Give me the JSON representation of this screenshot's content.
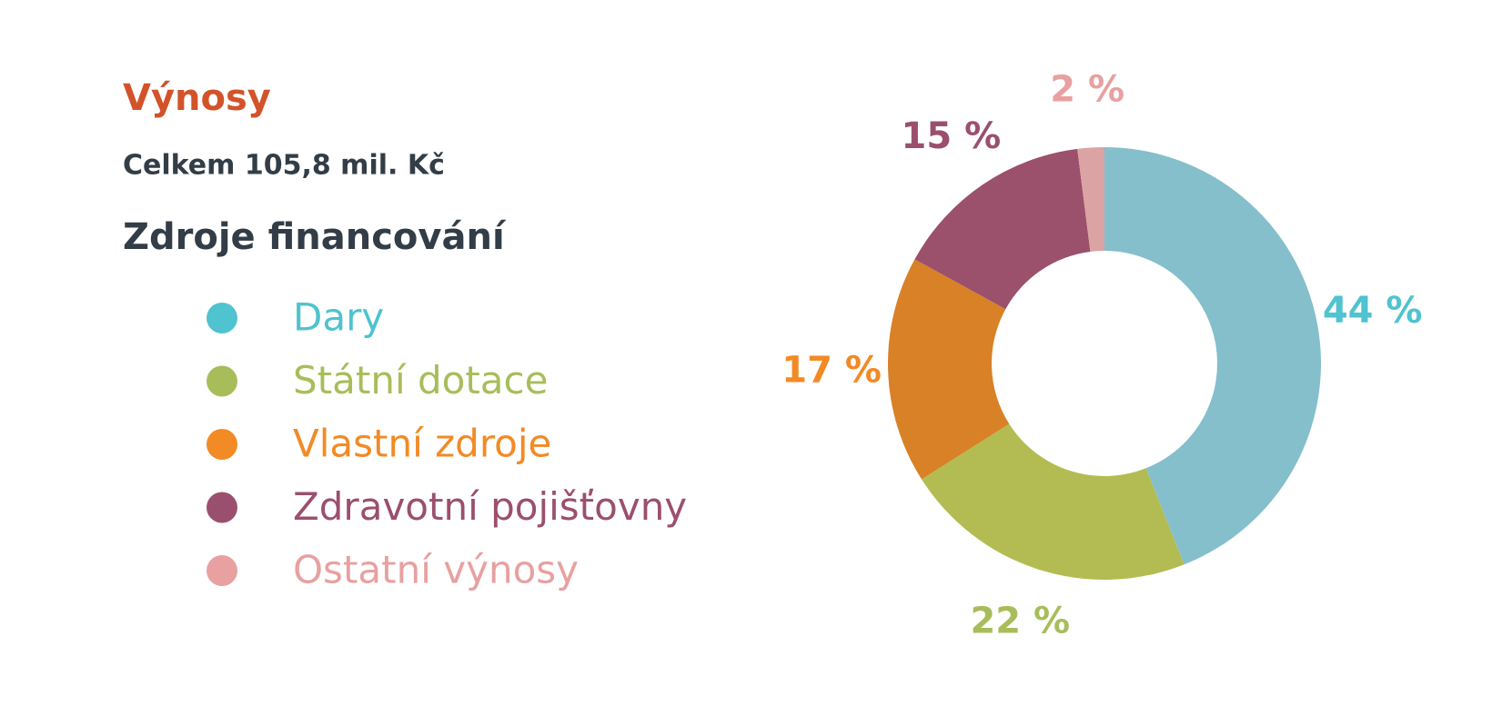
{
  "chart_data": {
    "type": "donut",
    "title": "Výnosy",
    "subtitle": "Celkem 105,8 mil. Kč",
    "legend_title": "Zdroje financování",
    "categories": [
      "Dary",
      "Státní dotace",
      "Vlastní zdroje",
      "Zdravotní pojišťovny",
      "Ostatní výnosy"
    ],
    "values": [
      44,
      22,
      17,
      15,
      2
    ],
    "value_labels": [
      "44 %",
      "22 %",
      "17 %",
      "15 %",
      "2 %"
    ],
    "colors": [
      "#84bfcb",
      "#b3bc52",
      "#d98126",
      "#9b506c",
      "#dba3a3"
    ],
    "label_colors": [
      "#4fc3cf",
      "#a8bd5a",
      "#f28a25",
      "#9b4f6e",
      "#e8a0a0"
    ]
  }
}
